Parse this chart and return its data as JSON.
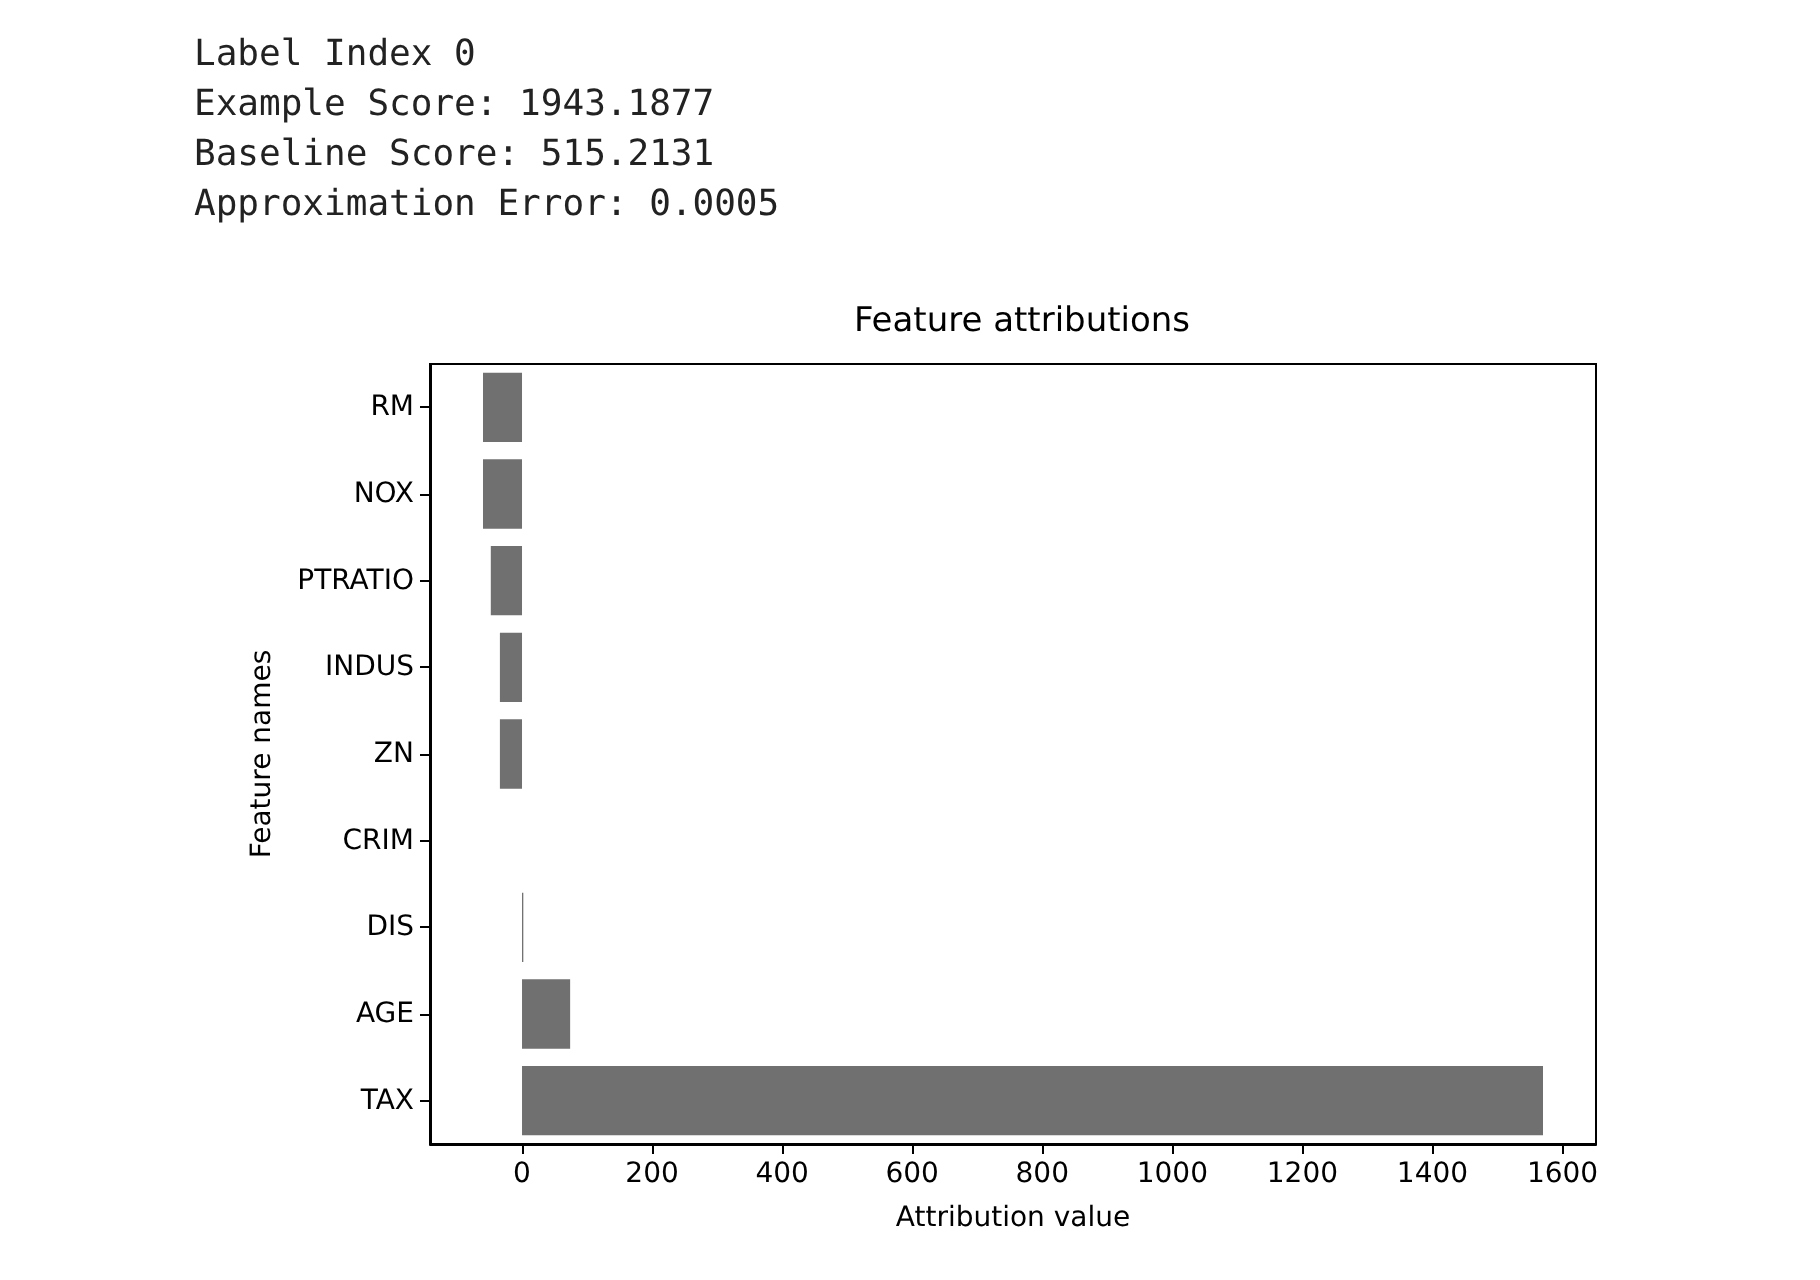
{
  "chart_data": {
    "type": "bar",
    "orientation": "horizontal",
    "title": "Feature attributions",
    "xlabel": "Attribution value",
    "ylabel": "Feature names",
    "annotations": [
      "Label Index 0",
      "Example Score: 1943.1877",
      "Baseline Score: 515.2131",
      "Approximation Error: 0.0005"
    ],
    "categories": [
      "RM",
      "NOX",
      "PTRATIO",
      "INDUS",
      "ZN",
      "CRIM",
      "DIS",
      "AGE",
      "TAX"
    ],
    "values": [
      -60,
      -60,
      -48,
      -34,
      -34,
      0,
      2,
      74,
      1570
    ],
    "color": "#707070",
    "xlim": [
      -141.5,
      1651.5
    ],
    "xticks": [
      0,
      200,
      400,
      600,
      800,
      1000,
      1200,
      1400,
      1600
    ],
    "grid": false
  }
}
